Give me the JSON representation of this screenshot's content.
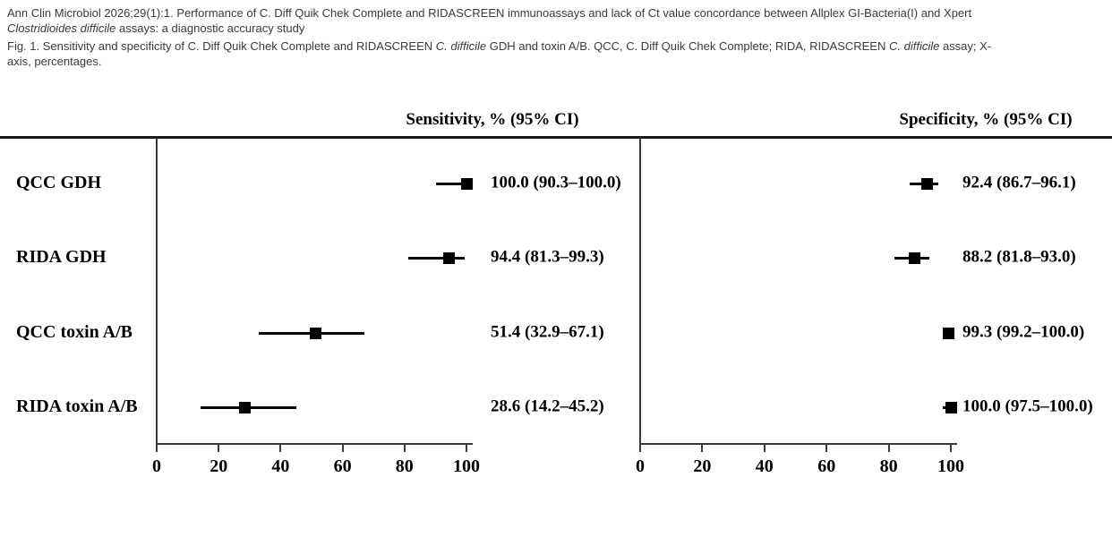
{
  "caption": {
    "line1": {
      "text": "Ann Clin Microbiol 2026;29(1):1. Performance of C. Diff Quik Chek Complete and RIDASCREEN immunoassays and lack of Ct value concordance between Allplex GI-Bacteria(I) and Xpert"
    },
    "line2": {
      "italic": "Clostridioides difficile",
      "text": " assays: a diagnostic accuracy study"
    },
    "line3": {
      "part1": "Fig. 1. Sensitivity and specificity of C. Diff Quik Chek Complete and RIDASCREEN ",
      "italic1": "C. difficile",
      "part2": " GDH and toxin A/B. QCC, C. Diff Quik Chek Complete; RIDA, RIDASCREEN ",
      "italic2": "C. difficile",
      "part3": " assay; X-"
    },
    "line4": {
      "text": "axis, percentages."
    }
  },
  "colors": {
    "background": "#ffffff",
    "caption_text": "#3a3a3a",
    "figure_text": "#000000",
    "axis": "#383838",
    "marker": "#000000",
    "rule": "#1a1a1a"
  },
  "chart_data": [
    {
      "type": "forest",
      "panel": "sensitivity",
      "title": "Sensitivity, % (95% CI)",
      "xlabel": "",
      "xlim": [
        0,
        100
      ],
      "xticks": [
        0,
        20,
        40,
        60,
        80,
        100
      ],
      "grid": "off",
      "legend": "none",
      "rows": [
        {
          "label": "QCC GDH",
          "estimate": 100.0,
          "ci_low": 90.3,
          "ci_high": 100.0,
          "text": "100.0 (90.3–100.0)"
        },
        {
          "label": "RIDA GDH",
          "estimate": 94.4,
          "ci_low": 81.3,
          "ci_high": 99.3,
          "text": "94.4 (81.3–99.3)"
        },
        {
          "label": "QCC toxin A/B",
          "estimate": 51.4,
          "ci_low": 32.9,
          "ci_high": 67.1,
          "text": "51.4 (32.9–67.1)"
        },
        {
          "label": "RIDA toxin A/B",
          "estimate": 28.6,
          "ci_low": 14.2,
          "ci_high": 45.2,
          "text": "28.6 (14.2–45.2)"
        }
      ]
    },
    {
      "type": "forest",
      "panel": "specificity",
      "title": "Specificity, % (95% CI)",
      "xlabel": "",
      "xlim": [
        0,
        100
      ],
      "xticks": [
        0,
        20,
        40,
        60,
        80,
        100
      ],
      "grid": "off",
      "legend": "none",
      "rows": [
        {
          "label": "QCC GDH",
          "estimate": 92.4,
          "ci_low": 86.7,
          "ci_high": 96.1,
          "text": "92.4 (86.7–96.1)"
        },
        {
          "label": "RIDA GDH",
          "estimate": 88.2,
          "ci_low": 81.8,
          "ci_high": 93.0,
          "text": "88.2 (81.8–93.0)"
        },
        {
          "label": "QCC toxin A/B",
          "estimate": 99.3,
          "ci_low": 99.2,
          "ci_high": 100.0,
          "text": "99.3 (99.2–100.0)"
        },
        {
          "label": "RIDA toxin A/B",
          "estimate": 100.0,
          "ci_low": 97.5,
          "ci_high": 100.0,
          "text": "100.0 (97.5–100.0)"
        }
      ]
    }
  ]
}
